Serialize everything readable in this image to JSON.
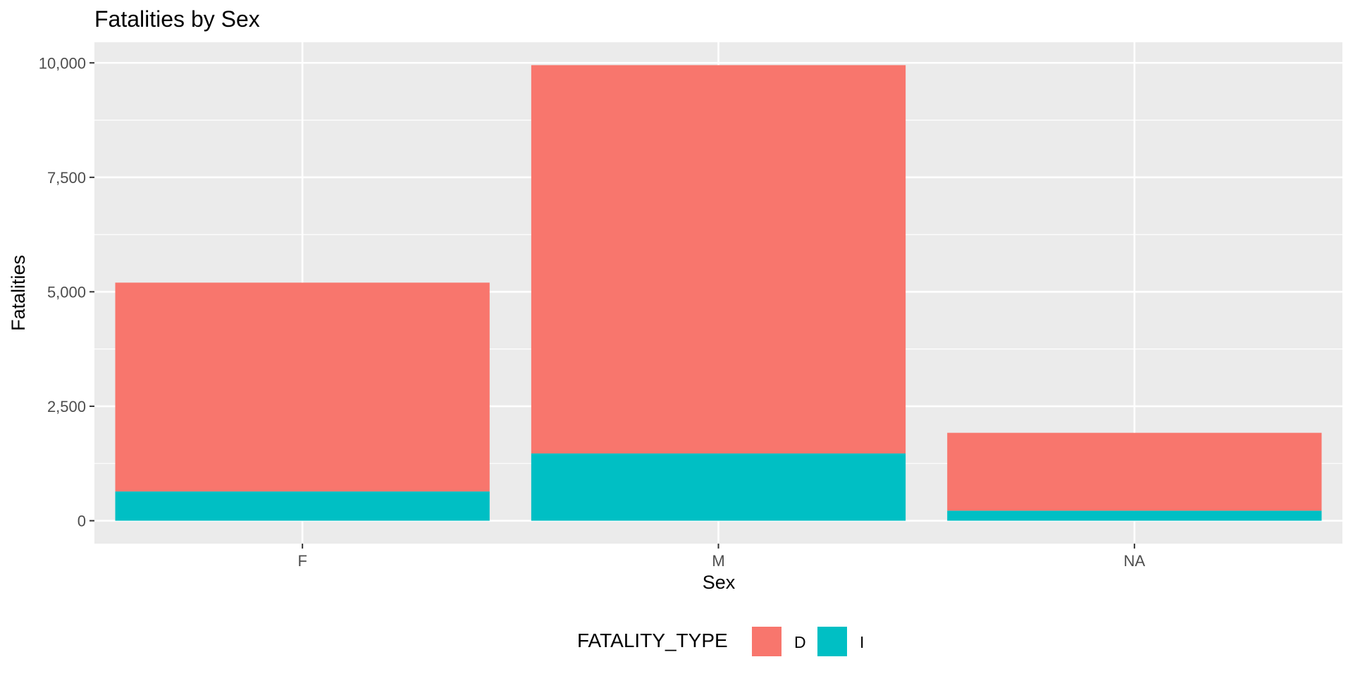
{
  "chart_data": {
    "type": "bar",
    "stacked": true,
    "title": "Fatalities by Sex",
    "xlabel": "Sex",
    "ylabel": "Fatalities",
    "categories": [
      "F",
      "M",
      "NA"
    ],
    "series": [
      {
        "name": "D",
        "values": [
          4560,
          8480,
          1700
        ],
        "color": "#F8766D"
      },
      {
        "name": "I",
        "values": [
          640,
          1470,
          220
        ],
        "color": "#00BFC4"
      }
    ],
    "ylim": [
      -500,
      10450
    ],
    "yticks": [
      0,
      2500,
      5000,
      7500,
      10000
    ],
    "ytick_labels": [
      "0",
      "2,500",
      "5,000",
      "7,500",
      "10,000"
    ],
    "grid": true,
    "panel_background": "#EBEBEB",
    "legend": {
      "title": "FATALITY_TYPE",
      "position": "bottom",
      "entries": [
        "D",
        "I"
      ]
    }
  }
}
